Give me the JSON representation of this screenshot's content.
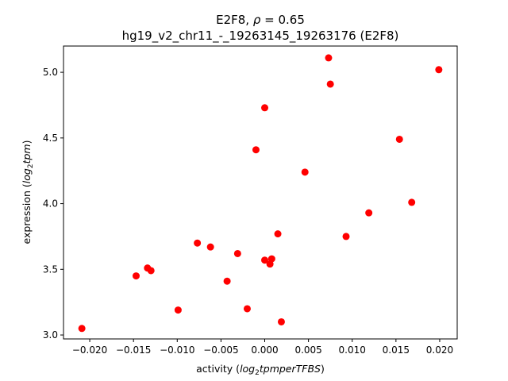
{
  "chart_data": {
    "type": "scatter",
    "title_line1_prefix": "E2F8, ",
    "title_line1_symbol": "ρ",
    "title_line1_suffix": " = 0.65",
    "title_line2": "hg19_v2_chr11_-_19263145_19263176 (E2F8)",
    "xlabel_prefix": "activity (",
    "xlabel_math_base": "log",
    "xlabel_math_sub": "2",
    "xlabel_math_rest": "tpmperTFBS",
    "xlabel_suffix": ")",
    "ylabel_prefix": "expression (",
    "ylabel_math_base": "log",
    "ylabel_math_sub": "2",
    "ylabel_math_rest": "tpm",
    "ylabel_suffix": ")",
    "xlim": [
      -0.023,
      0.022
    ],
    "ylim": [
      2.97,
      5.2
    ],
    "xticks": [
      -0.02,
      -0.015,
      -0.01,
      -0.005,
      0.0,
      0.005,
      0.01,
      0.015,
      0.02
    ],
    "xtick_labels": [
      "−0.020",
      "−0.015",
      "−0.010",
      "−0.005",
      "0.000",
      "0.005",
      "0.010",
      "0.015",
      "0.020"
    ],
    "yticks": [
      3.0,
      3.5,
      4.0,
      4.5,
      5.0
    ],
    "ytick_labels": [
      "3.0",
      "3.5",
      "4.0",
      "4.5",
      "5.0"
    ],
    "marker_color": "#ff0000",
    "points": [
      {
        "x": -0.0209,
        "y": 3.05
      },
      {
        "x": -0.0147,
        "y": 3.45
      },
      {
        "x": -0.0134,
        "y": 3.51
      },
      {
        "x": -0.013,
        "y": 3.49
      },
      {
        "x": -0.0099,
        "y": 3.19
      },
      {
        "x": -0.0077,
        "y": 3.7
      },
      {
        "x": -0.0062,
        "y": 3.67
      },
      {
        "x": -0.0043,
        "y": 3.41
      },
      {
        "x": -0.0031,
        "y": 3.62
      },
      {
        "x": -0.002,
        "y": 3.2
      },
      {
        "x": -0.001,
        "y": 4.41
      },
      {
        "x": 0.0,
        "y": 4.73
      },
      {
        "x": 0.0,
        "y": 3.57
      },
      {
        "x": 0.0006,
        "y": 3.54
      },
      {
        "x": 0.0008,
        "y": 3.58
      },
      {
        "x": 0.0015,
        "y": 3.77
      },
      {
        "x": 0.0019,
        "y": 3.1
      },
      {
        "x": 0.0046,
        "y": 4.24
      },
      {
        "x": 0.0073,
        "y": 5.11
      },
      {
        "x": 0.0075,
        "y": 4.91
      },
      {
        "x": 0.0093,
        "y": 3.75
      },
      {
        "x": 0.0119,
        "y": 3.93
      },
      {
        "x": 0.0154,
        "y": 4.49
      },
      {
        "x": 0.0168,
        "y": 4.01
      },
      {
        "x": 0.0199,
        "y": 5.02
      }
    ]
  }
}
